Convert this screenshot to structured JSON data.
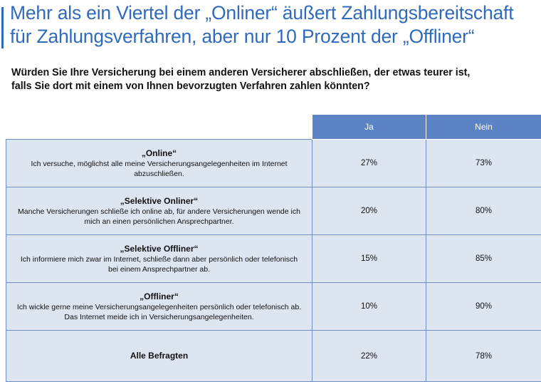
{
  "title_line1": "Mehr als ein Viertel der „Onliner“ äußert Zahlungsbereitschaft",
  "title_line2": "für Zahlungsverfahren, aber nur 10 Prozent der „Offliner“",
  "question_line1": "Würden Sie Ihre Versicherung bei einem anderen Versicherer abschließen, der etwas teurer ist,",
  "question_line2": "falls Sie dort mit einem von Ihnen bevorzugten Verfahren zahlen könnten?",
  "colors": {
    "title": "#2f6bbd",
    "header_bg": "#5b83c5",
    "cell_bg": "#dde5f1",
    "border": "#6f8fc4"
  },
  "chart_data": {
    "type": "table",
    "columns": [
      "Ja",
      "Nein"
    ],
    "rows": [
      {
        "segment": "„Online“",
        "description_line1": "Ich versuche, möglichst alle meine Versicherungsangelegenheiten im Internet",
        "description_line2": "abzuschließen.",
        "ja": "27%",
        "nein": "73%"
      },
      {
        "segment": "„Selektive Onliner“",
        "description_line1": "Manche Versicherungen schließe ich online ab, für andere Versicherungen wende ich",
        "description_line2": "mich an einen persönlichen Ansprechpartner.",
        "ja": "20%",
        "nein": "80%"
      },
      {
        "segment": "„Selektive Offliner“",
        "description_line1": "Ich informiere mich zwar im Internet, schließe dann aber persönlich oder telefonisch",
        "description_line2": "bei einem Ansprechpartner ab.",
        "ja": "15%",
        "nein": "85%"
      },
      {
        "segment": "„Offliner“",
        "description_line1": "Ich wickle gerne meine Versicherungsangelegenheiten persönlich oder telefonisch ab.",
        "description_line2": "Das Internet meide ich in Versicherungsangelegenheiten.",
        "ja": "10%",
        "nein": "90%"
      },
      {
        "segment": "Alle Befragten",
        "ja": "22%",
        "nein": "78%"
      }
    ]
  }
}
